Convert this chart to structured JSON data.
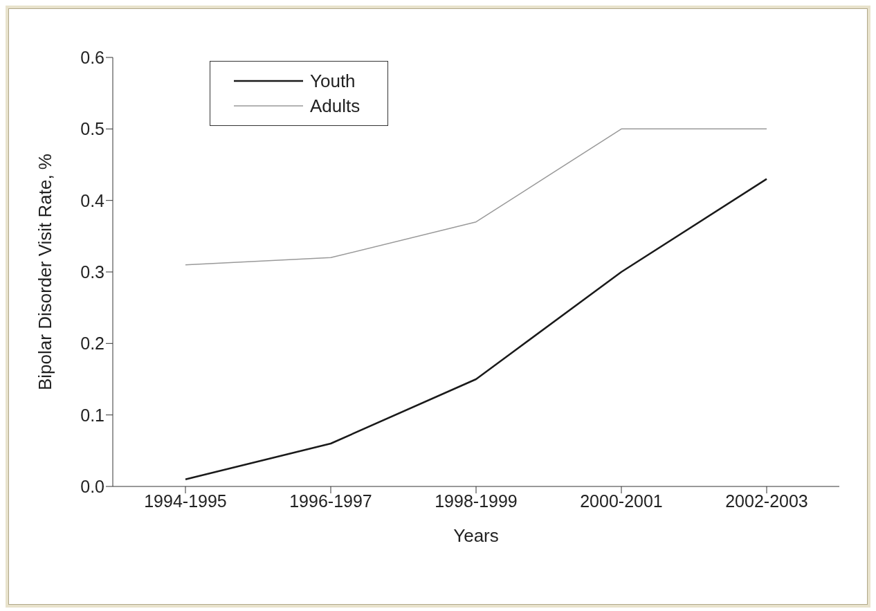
{
  "chart_data": {
    "type": "line",
    "xlabel": "Years",
    "ylabel": "Bipolar Disorder Visit Rate, %",
    "categories": [
      "1994-1995",
      "1996-1997",
      "1998-1999",
      "2000-2001",
      "2002-2003"
    ],
    "series": [
      {
        "name": "Youth",
        "color": "#1a1a1a",
        "values": [
          0.01,
          0.06,
          0.15,
          0.3,
          0.43
        ]
      },
      {
        "name": "Adults",
        "color": "#999999",
        "values": [
          0.31,
          0.32,
          0.37,
          0.5,
          0.5
        ]
      }
    ],
    "ylim": [
      0,
      0.6
    ],
    "yticks": [
      {
        "value": 0,
        "label": "0.0"
      },
      {
        "value": 0.1,
        "label": "0.1"
      },
      {
        "value": 0.2,
        "label": "0.2"
      },
      {
        "value": 0.3,
        "label": "0.3"
      },
      {
        "value": 0.4,
        "label": "0.4"
      },
      {
        "value": 0.5,
        "label": "0.5"
      },
      {
        "value": 0.6,
        "label": "0.6"
      }
    ],
    "grid": false,
    "legend": "top left",
    "marker": "none",
    "line_style": "solid"
  }
}
